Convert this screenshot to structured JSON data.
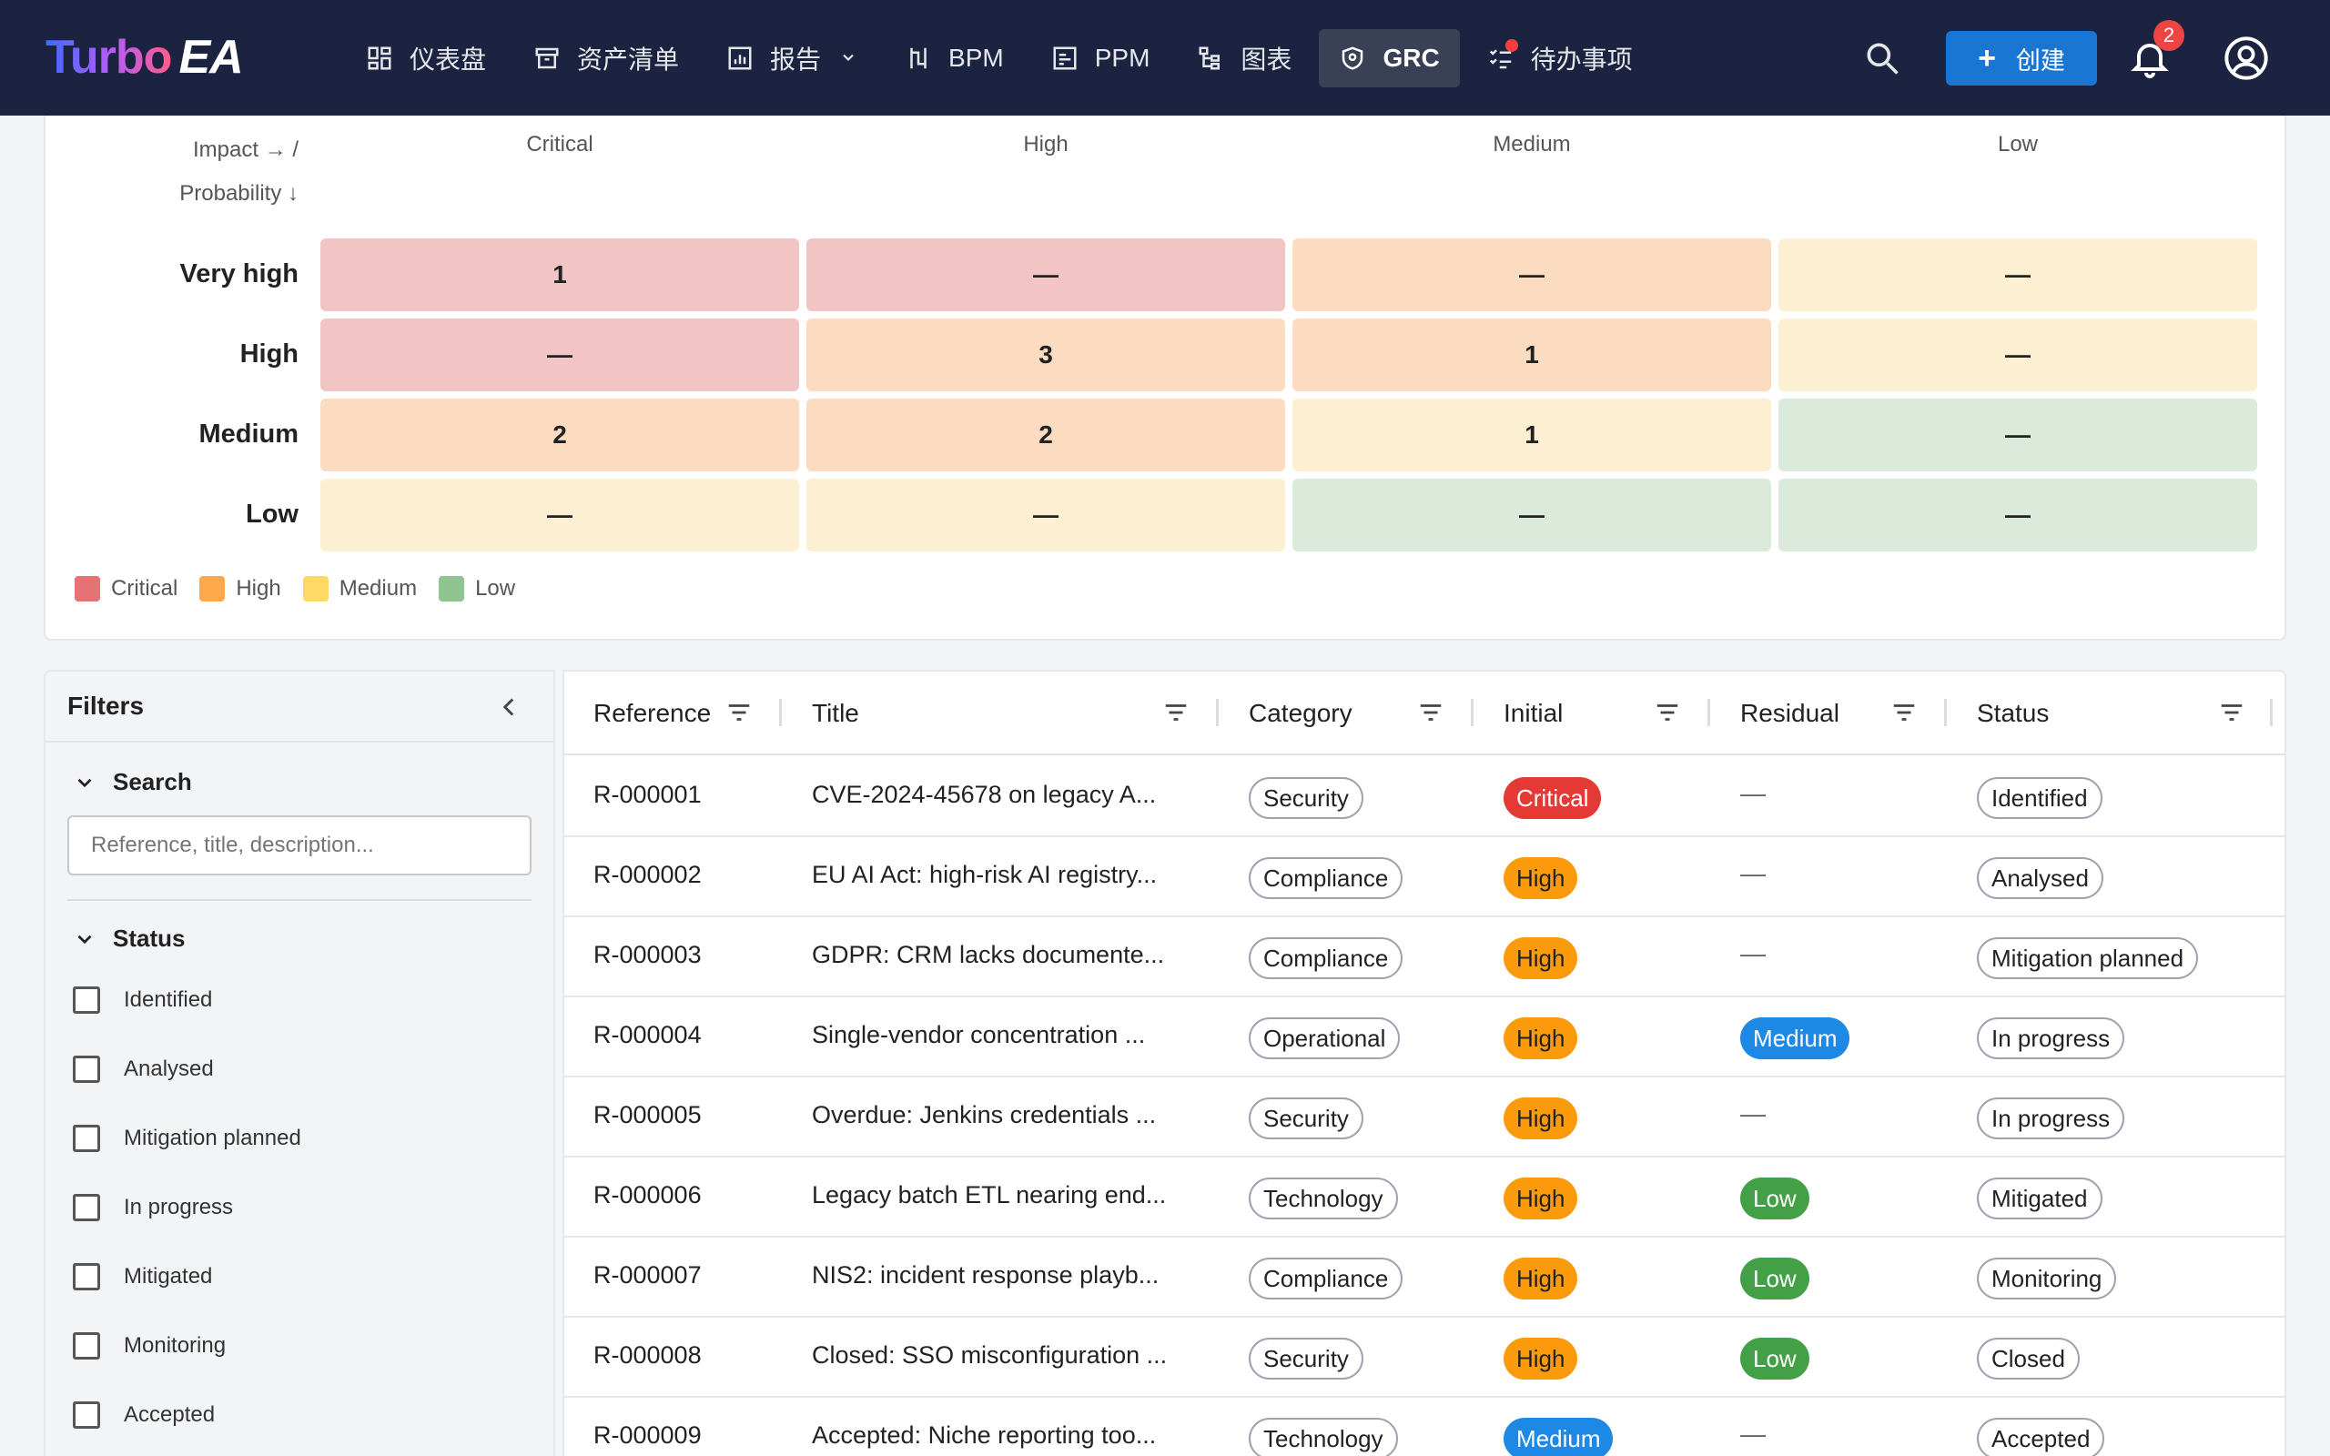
{
  "topbar": {
    "logo_left": "Turbo",
    "logo_right": "EA",
    "nav": [
      {
        "label": "仪表盘",
        "icon": "dashboard-icon"
      },
      {
        "label": "资产清单",
        "icon": "inventory-icon"
      },
      {
        "label": "报告",
        "icon": "report-icon",
        "has_dropdown": true
      },
      {
        "label": "BPM",
        "icon": "bpm-icon"
      },
      {
        "label": "PPM",
        "icon": "ppm-icon"
      },
      {
        "label": "图表",
        "icon": "diagram-icon"
      },
      {
        "label": "GRC",
        "icon": "shield-icon",
        "active": true
      },
      {
        "label": "待办事项",
        "icon": "todo-icon"
      }
    ],
    "create_label": "创建",
    "notification_count": "2"
  },
  "matrix": {
    "axis_impact": "Impact → /",
    "axis_probability": "Probability ↓",
    "columns": [
      "Critical",
      "High",
      "Medium",
      "Low"
    ],
    "rows": [
      {
        "label": "Very high",
        "cells": [
          "1",
          "—",
          "—",
          "—"
        ],
        "levels": [
          "crit",
          "crit",
          "high",
          "med"
        ]
      },
      {
        "label": "High",
        "cells": [
          "—",
          "3",
          "1",
          "—"
        ],
        "levels": [
          "crit",
          "high",
          "high",
          "med"
        ]
      },
      {
        "label": "Medium",
        "cells": [
          "2",
          "2",
          "1",
          "—"
        ],
        "levels": [
          "high",
          "high",
          "med",
          "low"
        ]
      },
      {
        "label": "Low",
        "cells": [
          "—",
          "—",
          "—",
          "—"
        ],
        "levels": [
          "med",
          "med",
          "low",
          "low"
        ]
      }
    ],
    "legend": [
      {
        "label": "Critical",
        "color": "#e57373"
      },
      {
        "label": "High",
        "color": "#ffa94d"
      },
      {
        "label": "Medium",
        "color": "#ffd966"
      },
      {
        "label": "Low",
        "color": "#8fc38f"
      }
    ]
  },
  "filters": {
    "title": "Filters",
    "search_label": "Search",
    "search_placeholder": "Reference, title, description...",
    "status_label": "Status",
    "status_options": [
      "Identified",
      "Analysed",
      "Mitigation planned",
      "In progress",
      "Mitigated",
      "Monitoring",
      "Accepted"
    ]
  },
  "table": {
    "columns": [
      "Reference",
      "Title",
      "Category",
      "Initial",
      "Residual",
      "Status"
    ],
    "rows": [
      {
        "ref": "R-000001",
        "title": "CVE-2024-45678 on legacy A...",
        "category": "Security",
        "initial": "Critical",
        "residual": "—",
        "status": "Identified"
      },
      {
        "ref": "R-000002",
        "title": "EU AI Act: high-risk AI registry...",
        "category": "Compliance",
        "initial": "High",
        "residual": "—",
        "status": "Analysed"
      },
      {
        "ref": "R-000003",
        "title": "GDPR: CRM lacks documente...",
        "category": "Compliance",
        "initial": "High",
        "residual": "—",
        "status": "Mitigation planned"
      },
      {
        "ref": "R-000004",
        "title": "Single-vendor concentration ...",
        "category": "Operational",
        "initial": "High",
        "residual": "Medium",
        "status": "In progress"
      },
      {
        "ref": "R-000005",
        "title": "Overdue: Jenkins credentials ...",
        "category": "Security",
        "initial": "High",
        "residual": "—",
        "status": "In progress"
      },
      {
        "ref": "R-000006",
        "title": "Legacy batch ETL nearing end...",
        "category": "Technology",
        "initial": "High",
        "residual": "Low",
        "status": "Mitigated"
      },
      {
        "ref": "R-000007",
        "title": "NIS2: incident response playb...",
        "category": "Compliance",
        "initial": "High",
        "residual": "Low",
        "status": "Monitoring"
      },
      {
        "ref": "R-000008",
        "title": "Closed: SSO misconfiguration ...",
        "category": "Security",
        "initial": "High",
        "residual": "Low",
        "status": "Closed"
      },
      {
        "ref": "R-000009",
        "title": "Accepted: Niche reporting too...",
        "category": "Technology",
        "initial": "Medium",
        "residual": "—",
        "status": "Accepted"
      }
    ]
  }
}
